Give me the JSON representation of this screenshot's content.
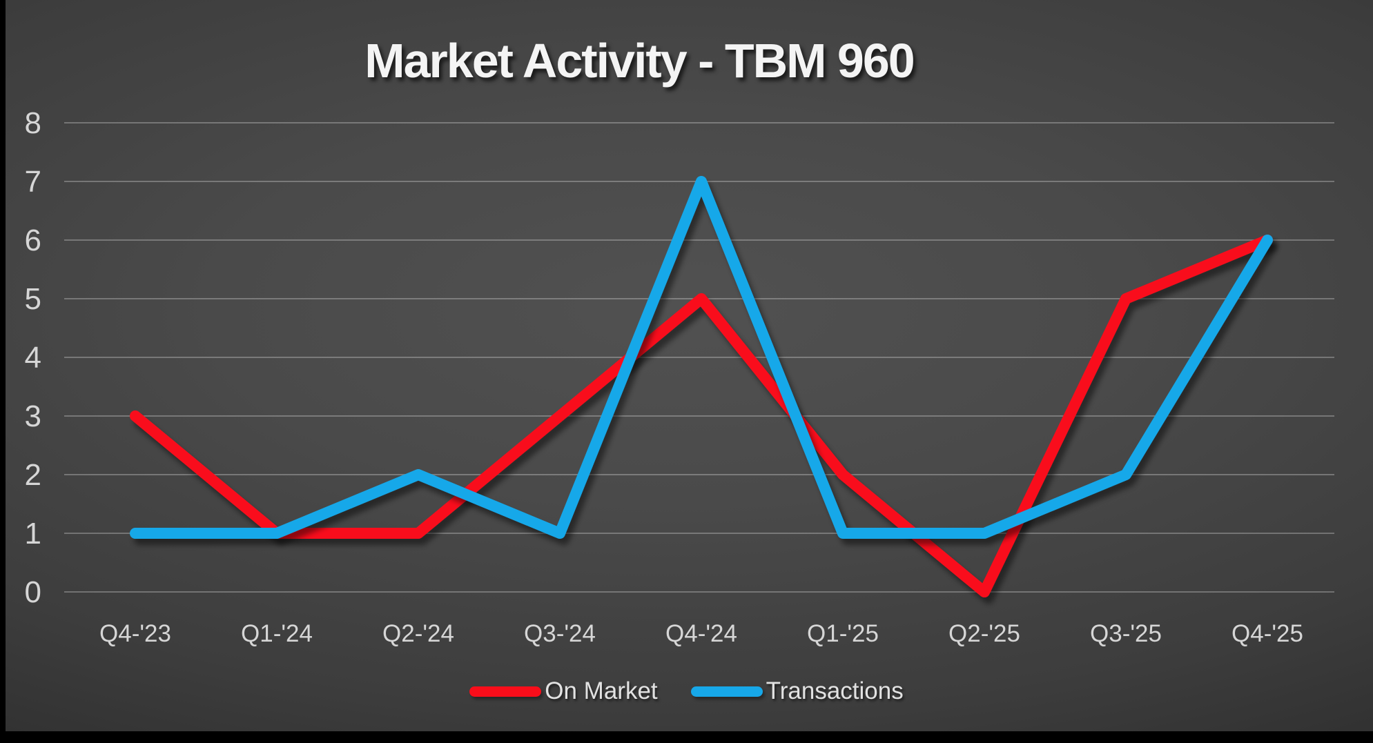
{
  "title": {
    "text": "Market Activity - TBM 960"
  },
  "theme": {
    "page_background": "#000000",
    "slide_background_center": "#515151",
    "slide_background_edge": "#191919",
    "axis_label_color": "#d6d6d6",
    "gridline_color": "rgba(255,255,255,0.27)",
    "title_color": "#f4f4f4",
    "legend_text_color": "#e2e2e2"
  },
  "chart_data": {
    "type": "line",
    "title": "Market Activity - TBM 960",
    "categories": [
      "Q4-'23",
      "Q1-'24",
      "Q2-'24",
      "Q3-'24",
      "Q4-'24",
      "Q1-'25",
      "Q2-'25",
      "Q3-'25",
      "Q4-'25"
    ],
    "series": [
      {
        "name": "On Market",
        "color": "#f90d1a",
        "values": [
          3,
          1,
          1,
          3,
          5,
          2,
          0,
          5,
          6
        ]
      },
      {
        "name": "Transactions",
        "color": "#17a8e9",
        "values": [
          1,
          1,
          2,
          1,
          7,
          1,
          1,
          2,
          6
        ]
      }
    ],
    "xlabel": "",
    "ylabel": "",
    "ylim": [
      0,
      8
    ],
    "yticks": [
      0,
      1,
      2,
      3,
      4,
      5,
      6,
      7,
      8
    ],
    "grid": "horizontal",
    "legend_position": "bottom"
  }
}
